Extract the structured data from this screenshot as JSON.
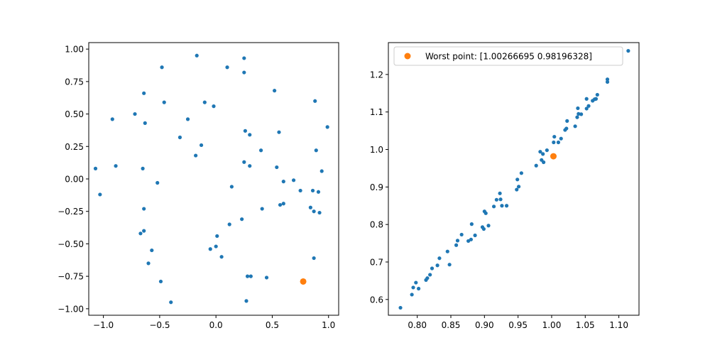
{
  "chart_data": [
    {
      "type": "scatter",
      "title": "",
      "xlabel": "",
      "ylabel": "",
      "xlim": [
        -1.13,
        1.09
      ],
      "ylim": [
        -1.05,
        1.05
      ],
      "xticks": [
        -1.0,
        -0.5,
        0.0,
        0.5,
        1.0
      ],
      "xtick_labels": [
        "−1.0",
        "−0.5",
        "0.0",
        "0.5",
        "1.0"
      ],
      "yticks": [
        -1.0,
        -0.75,
        -0.5,
        -0.25,
        0.0,
        0.25,
        0.5,
        0.75,
        1.0
      ],
      "ytick_labels": [
        "−1.00",
        "−0.75",
        "−0.50",
        "−0.25",
        "0.00",
        "0.25",
        "0.50",
        "0.75",
        "1.00"
      ],
      "grid": false,
      "series": [
        {
          "name": "",
          "color": "#1f77b4",
          "points": [
            [
              -1.07,
              0.08
            ],
            [
              -1.03,
              -0.12
            ],
            [
              -0.92,
              0.46
            ],
            [
              -0.89,
              0.1
            ],
            [
              -0.72,
              0.5
            ],
            [
              -0.67,
              -0.42
            ],
            [
              -0.65,
              0.08
            ],
            [
              -0.64,
              0.66
            ],
            [
              -0.63,
              0.43
            ],
            [
              -0.64,
              -0.23
            ],
            [
              -0.64,
              -0.4
            ],
            [
              -0.6,
              -0.65
            ],
            [
              -0.57,
              -0.55
            ],
            [
              -0.52,
              -0.03
            ],
            [
              -0.49,
              -0.79
            ],
            [
              -0.48,
              0.86
            ],
            [
              -0.46,
              0.59
            ],
            [
              -0.4,
              -0.95
            ],
            [
              -0.32,
              0.32
            ],
            [
              -0.25,
              0.46
            ],
            [
              -0.18,
              0.18
            ],
            [
              -0.17,
              0.95
            ],
            [
              -0.13,
              0.26
            ],
            [
              -0.1,
              0.59
            ],
            [
              -0.05,
              -0.54
            ],
            [
              -0.02,
              0.56
            ],
            [
              0.0,
              -0.52
            ],
            [
              0.01,
              -0.44
            ],
            [
              0.05,
              -0.6
            ],
            [
              0.1,
              0.86
            ],
            [
              0.12,
              -0.35
            ],
            [
              0.14,
              -0.06
            ],
            [
              0.23,
              -0.31
            ],
            [
              0.25,
              0.93
            ],
            [
              0.25,
              0.82
            ],
            [
              0.25,
              0.13
            ],
            [
              0.26,
              0.37
            ],
            [
              0.27,
              -0.94
            ],
            [
              0.28,
              -0.75
            ],
            [
              0.3,
              0.34
            ],
            [
              0.3,
              0.1
            ],
            [
              0.31,
              -0.75
            ],
            [
              0.4,
              0.22
            ],
            [
              0.41,
              -0.23
            ],
            [
              0.45,
              -0.76
            ],
            [
              0.52,
              0.68
            ],
            [
              0.54,
              0.09
            ],
            [
              0.56,
              0.36
            ],
            [
              0.57,
              -0.2
            ],
            [
              0.6,
              -0.19
            ],
            [
              0.6,
              -0.02
            ],
            [
              0.69,
              -0.01
            ],
            [
              0.75,
              -0.09
            ],
            [
              0.84,
              -0.22
            ],
            [
              0.86,
              -0.09
            ],
            [
              0.87,
              -0.61
            ],
            [
              0.87,
              -0.25
            ],
            [
              0.88,
              0.6
            ],
            [
              0.89,
              0.22
            ],
            [
              0.91,
              -0.1
            ],
            [
              0.92,
              -0.26
            ],
            [
              0.94,
              0.06
            ],
            [
              0.99,
              0.4
            ]
          ]
        },
        {
          "name": "",
          "color": "#ff7f0e",
          "points": [
            [
              0.775,
              -0.79
            ]
          ]
        }
      ]
    },
    {
      "type": "scatter",
      "title": "",
      "xlabel": "",
      "ylabel": "",
      "xlim": [
        0.757,
        1.13
      ],
      "ylim": [
        0.558,
        1.285
      ],
      "xticks": [
        0.8,
        0.85,
        0.9,
        0.95,
        1.0,
        1.05,
        1.1
      ],
      "xtick_labels": [
        "0.80",
        "0.85",
        "0.90",
        "0.95",
        "1.00",
        "1.05",
        "1.10"
      ],
      "yticks": [
        0.6,
        0.7,
        0.8,
        0.9,
        1.0,
        1.1,
        1.2
      ],
      "ytick_labels": [
        "0.6",
        "0.7",
        "0.8",
        "0.9",
        "1.0",
        "1.1",
        "1.2"
      ],
      "grid": false,
      "legend": {
        "placement": "top-left",
        "entries": [
          "Worst point: [1.00266695 0.98196328]"
        ]
      },
      "series": [
        {
          "name": "",
          "color": "#1f77b4",
          "points": [
            [
              0.775,
              0.578
            ],
            [
              0.792,
              0.613
            ],
            [
              0.794,
              0.632
            ],
            [
              0.798,
              0.645
            ],
            [
              0.802,
              0.629
            ],
            [
              0.813,
              0.652
            ],
            [
              0.815,
              0.657
            ],
            [
              0.819,
              0.666
            ],
            [
              0.822,
              0.683
            ],
            [
              0.83,
              0.691
            ],
            [
              0.833,
              0.71
            ],
            [
              0.845,
              0.728
            ],
            [
              0.848,
              0.693
            ],
            [
              0.858,
              0.745
            ],
            [
              0.86,
              0.757
            ],
            [
              0.866,
              0.773
            ],
            [
              0.876,
              0.756
            ],
            [
              0.88,
              0.76
            ],
            [
              0.881,
              0.801
            ],
            [
              0.886,
              0.771
            ],
            [
              0.897,
              0.793
            ],
            [
              0.899,
              0.788
            ],
            [
              0.9,
              0.835
            ],
            [
              0.902,
              0.83
            ],
            [
              0.906,
              0.797
            ],
            [
              0.914,
              0.848
            ],
            [
              0.918,
              0.866
            ],
            [
              0.923,
              0.883
            ],
            [
              0.924,
              0.867
            ],
            [
              0.926,
              0.85
            ],
            [
              0.933,
              0.85
            ],
            [
              0.948,
              0.893
            ],
            [
              0.949,
              0.92
            ],
            [
              0.951,
              0.901
            ],
            [
              0.955,
              0.937
            ],
            [
              0.977,
              0.957
            ],
            [
              0.983,
              0.994
            ],
            [
              0.985,
              0.972
            ],
            [
              0.987,
              0.988
            ],
            [
              0.988,
              0.966
            ],
            [
              0.993,
              0.998
            ],
            [
              1.003,
              1.019
            ],
            [
              1.004,
              1.034
            ],
            [
              1.01,
              1.019
            ],
            [
              1.014,
              1.029
            ],
            [
              1.02,
              1.052
            ],
            [
              1.022,
              1.056
            ],
            [
              1.023,
              1.076
            ],
            [
              1.035,
              1.062
            ],
            [
              1.038,
              1.086
            ],
            [
              1.039,
              1.11
            ],
            [
              1.04,
              1.095
            ],
            [
              1.044,
              1.094
            ],
            [
              1.052,
              1.135
            ],
            [
              1.052,
              1.109
            ],
            [
              1.055,
              1.116
            ],
            [
              1.061,
              1.13
            ],
            [
              1.064,
              1.134
            ],
            [
              1.066,
              1.135
            ],
            [
              1.068,
              1.146
            ],
            [
              1.083,
              1.18
            ],
            [
              1.083,
              1.187
            ],
            [
              1.114,
              1.263
            ]
          ]
        },
        {
          "name": "Worst point: [1.00266695 0.98196328]",
          "color": "#ff7f0e",
          "points": [
            [
              1.00266695,
              0.98196328
            ]
          ]
        }
      ]
    }
  ]
}
